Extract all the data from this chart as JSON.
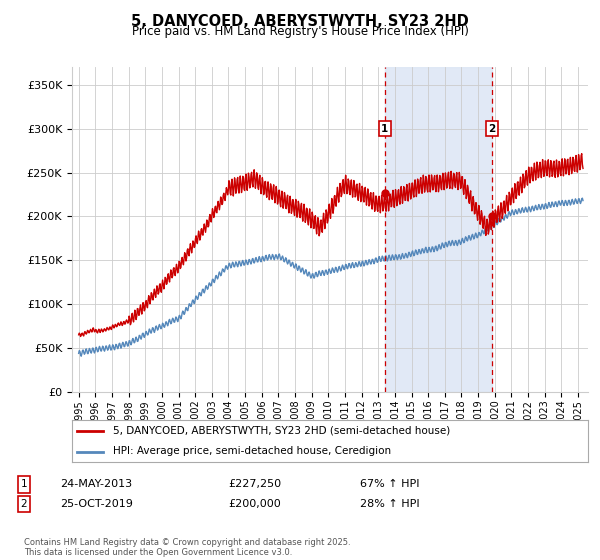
{
  "title": "5, DANYCOED, ABERYSTWYTH, SY23 2HD",
  "subtitle": "Price paid vs. HM Land Registry's House Price Index (HPI)",
  "ylabel_ticks": [
    "£0",
    "£50K",
    "£100K",
    "£150K",
    "£200K",
    "£250K",
    "£300K",
    "£350K"
  ],
  "ytick_values": [
    0,
    50000,
    100000,
    150000,
    200000,
    250000,
    300000,
    350000
  ],
  "ylim": [
    0,
    370000
  ],
  "xlim_start": 1994.6,
  "xlim_end": 2025.6,
  "sale1_date": 2013.39,
  "sale1_price": 227250,
  "sale1_label": "1",
  "sale1_date_str": "24-MAY-2013",
  "sale1_amount_str": "£227,250",
  "sale1_hpi_str": "67% ↑ HPI",
  "sale2_date": 2019.82,
  "sale2_price": 200000,
  "sale2_label": "2",
  "sale2_date_str": "25-OCT-2019",
  "sale2_amount_str": "£200,000",
  "sale2_hpi_str": "28% ↑ HPI",
  "line1_color": "#cc0000",
  "line2_color": "#5588bb",
  "shade_color": "#dce6f5",
  "grid_color": "#cccccc",
  "vline_color": "#cc0000",
  "legend1_label": "5, DANYCOED, ABERYSTWYTH, SY23 2HD (semi-detached house)",
  "legend2_label": "HPI: Average price, semi-detached house, Ceredigion",
  "footer": "Contains HM Land Registry data © Crown copyright and database right 2025.\nThis data is licensed under the Open Government Licence v3.0.",
  "background_color": "#ffffff",
  "plot_bg_color": "#ffffff"
}
